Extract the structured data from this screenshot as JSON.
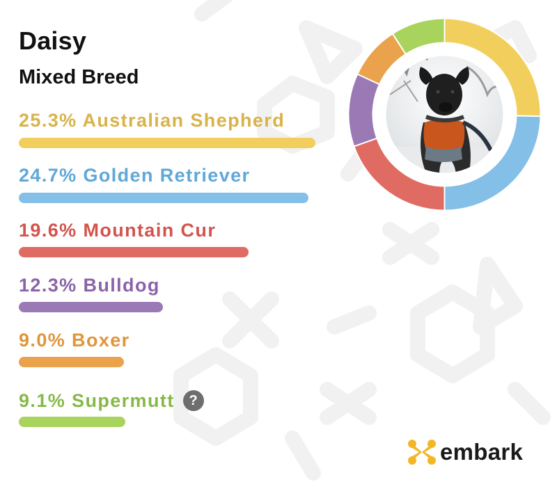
{
  "dog": {
    "name": "Daisy",
    "type": "Mixed Breed"
  },
  "breeds": [
    {
      "label": "25.3% Australian Shepherd",
      "percent": 25.3,
      "color": "#f2cf5c"
    },
    {
      "label": "24.7% Golden Retriever",
      "percent": 24.7,
      "color": "#83bfe6"
    },
    {
      "label": "19.6% Mountain Cur",
      "percent": 19.6,
      "color": "#e06b63"
    },
    {
      "label": "12.3% Bulldog",
      "percent": 12.3,
      "color": "#9b79b5"
    },
    {
      "label": "9.0% Boxer",
      "percent": 9.0,
      "color": "#eaa24c"
    },
    {
      "label": "9.1% Supermutt",
      "percent": 9.1,
      "color": "#a8d35c",
      "has_help": true
    }
  ],
  "help_icon": {
    "glyph": "?",
    "icon": "question-circle-icon"
  },
  "logo": {
    "text": "embark",
    "icon_color": "#f2b626"
  },
  "photo": {
    "icon": "dog-photo-icon"
  }
}
